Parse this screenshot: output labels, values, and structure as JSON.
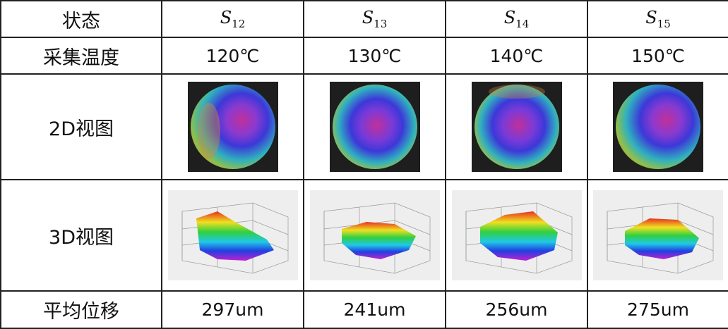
{
  "table": {
    "row_labels": {
      "state": "状态",
      "temperature": "采集温度",
      "view2d": "2D视图",
      "view3d": "3D视图",
      "displacement": "平均位移"
    },
    "columns": [
      {
        "state_base": "S",
        "state_sub": "12",
        "temperature": "120℃",
        "displacement": "297um"
      },
      {
        "state_base": "S",
        "state_sub": "13",
        "temperature": "130℃",
        "displacement": "241um"
      },
      {
        "state_base": "S",
        "state_sub": "14",
        "temperature": "140℃",
        "displacement": "256um"
      },
      {
        "state_base": "S",
        "state_sub": "15",
        "temperature": "150℃",
        "displacement": "275um"
      }
    ]
  },
  "colors": {
    "border": "#222222",
    "map_center": "#c0309a",
    "map_mid": "#3c38d8",
    "map_outer": "#2fb0c0",
    "map_rim": "#d08a3a",
    "surface_red": "#e83020",
    "surface_yellow": "#f0e020",
    "surface_green": "#30d040",
    "surface_cyan": "#20c8e8",
    "surface_blue": "#2040e0",
    "surface_magenta": "#c020d0"
  }
}
